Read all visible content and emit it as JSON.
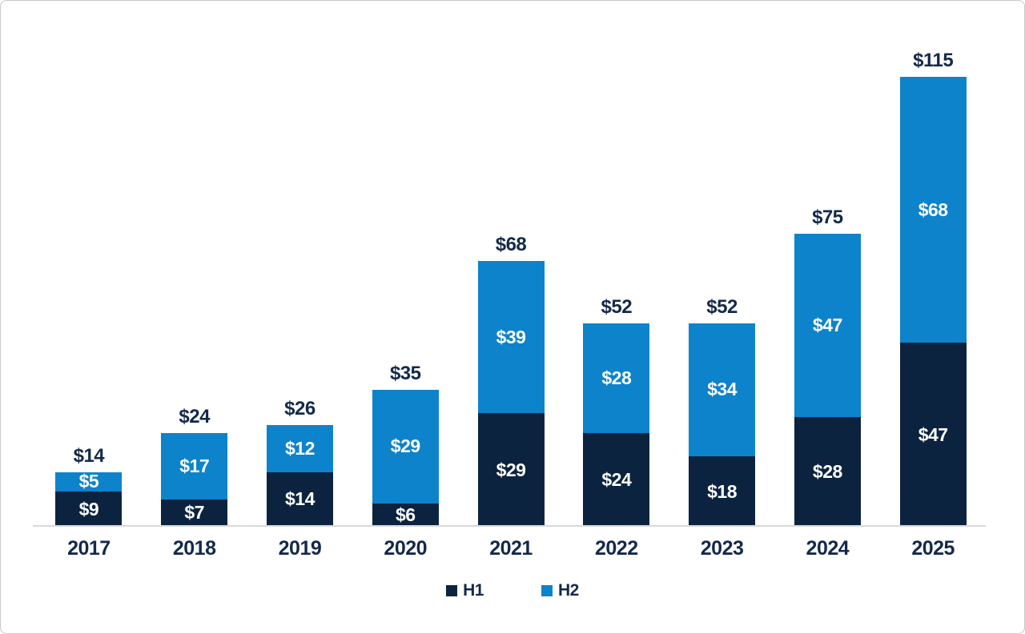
{
  "chart_data": {
    "type": "bar",
    "stacked": true,
    "title": "",
    "xlabel": "",
    "ylabel": "",
    "categories": [
      "2017",
      "2018",
      "2019",
      "2020",
      "2021",
      "2022",
      "2023",
      "2024",
      "2025"
    ],
    "series": [
      {
        "name": "H1",
        "color": "#0c2340",
        "values": [
          9,
          7,
          14,
          6,
          29,
          24,
          18,
          28,
          47
        ],
        "labels": [
          "$9",
          "$7",
          "$14",
          "$6",
          "$29",
          "$24",
          "$18",
          "$28",
          "$47"
        ]
      },
      {
        "name": "H2",
        "color": "#0d83cb",
        "values": [
          5,
          17,
          12,
          29,
          39,
          28,
          34,
          47,
          68
        ],
        "labels": [
          "$5",
          "$17",
          "$12",
          "$29",
          "$39",
          "$28",
          "$34",
          "$47",
          "$68"
        ]
      }
    ],
    "totals": [
      14,
      24,
      26,
      35,
      68,
      52,
      52,
      75,
      115
    ],
    "total_labels": [
      "$14",
      "$24",
      "$26",
      "$35",
      "$68",
      "$52",
      "$52",
      "$75",
      "$115"
    ],
    "value_prefix": "$",
    "ylim": [
      0,
      115
    ],
    "grid": false,
    "legend": {
      "position": "bottom",
      "items": [
        {
          "label": "H1",
          "color": "#0c2340"
        },
        {
          "label": "H2",
          "color": "#0d83cb"
        }
      ]
    }
  },
  "colors": {
    "h1_bar": "#0c2340",
    "h2_bar": "#0d83cb",
    "label_text": "#13294b",
    "bar_value_text": "#ffffff",
    "axis_line": "#d9d9d9",
    "frame_border": "#c9c9c9",
    "background": "#ffffff"
  }
}
